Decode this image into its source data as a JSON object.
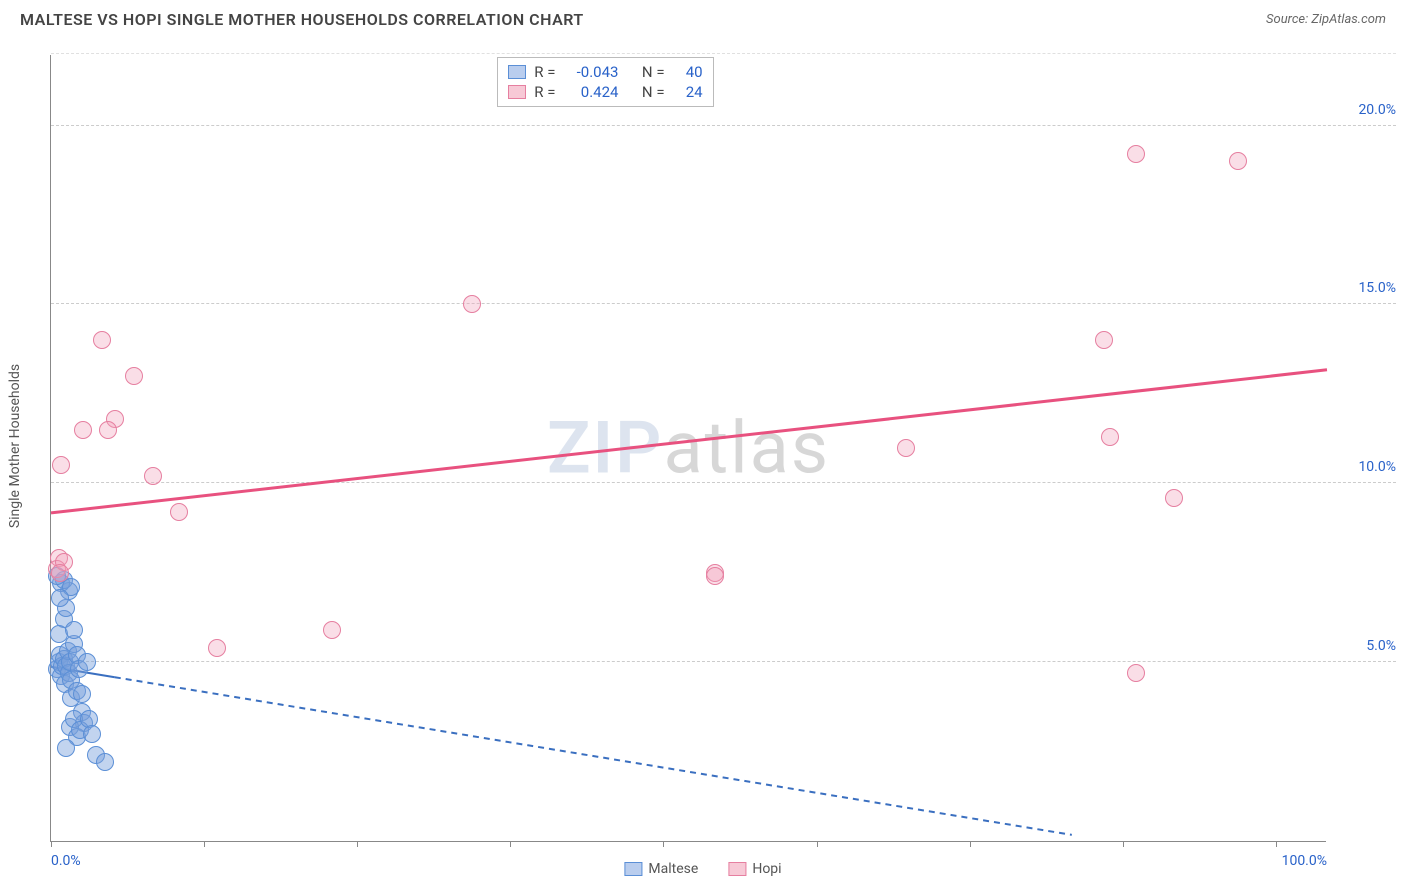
{
  "title": "MALTESE VS HOPI SINGLE MOTHER HOUSEHOLDS CORRELATION CHART",
  "source_label": "Source: ZipAtlas.com",
  "y_axis_label": "Single Mother Households",
  "watermark": {
    "zip": "ZIP",
    "atlas": "atlas"
  },
  "chart": {
    "type": "scatter",
    "background_color": "#ffffff",
    "grid_color": "#cccccc",
    "axis_color": "#888888",
    "text_color": "#555555",
    "value_color": "#2962c9",
    "xlim": [
      0,
      100
    ],
    "ylim": [
      0,
      22
    ],
    "x_ticks": [
      0,
      12,
      24,
      36,
      48,
      60,
      72,
      84,
      96
    ],
    "x_tick_labels": {
      "0": "0.0%",
      "100": "100.0%"
    },
    "y_gridlines": [
      5,
      10,
      15,
      20
    ],
    "y_tick_labels": {
      "5": "5.0%",
      "10": "10.0%",
      "15": "15.0%",
      "20": "20.0%"
    },
    "marker_radius": 9,
    "marker_stroke_width": 1.5,
    "series": [
      {
        "name": "Maltese",
        "fill": "rgba(120,160,220,0.45)",
        "stroke": "#5b8fd6",
        "swatch_fill": "#b9cdee",
        "swatch_stroke": "#5b8fd6",
        "R": "-0.043",
        "N": "40",
        "trend": {
          "x1": 0,
          "y1": 4.9,
          "x2": 80,
          "y2": 0.2,
          "solid_until_x": 5,
          "color": "#3a6fc0",
          "width": 2,
          "dash": "6,5"
        },
        "points": [
          [
            0.5,
            4.8
          ],
          [
            0.6,
            5.0
          ],
          [
            0.7,
            5.2
          ],
          [
            0.8,
            4.6
          ],
          [
            0.9,
            4.9
          ],
          [
            1.0,
            5.1
          ],
          [
            1.1,
            4.4
          ],
          [
            1.2,
            4.9
          ],
          [
            1.3,
            5.3
          ],
          [
            1.4,
            4.7
          ],
          [
            1.5,
            5.0
          ],
          [
            1.6,
            4.5
          ],
          [
            1.0,
            6.2
          ],
          [
            1.2,
            6.5
          ],
          [
            1.4,
            7.0
          ],
          [
            0.8,
            7.2
          ],
          [
            1.0,
            7.3
          ],
          [
            1.6,
            7.1
          ],
          [
            0.6,
            5.8
          ],
          [
            1.8,
            5.5
          ],
          [
            2.0,
            5.2
          ],
          [
            2.2,
            4.8
          ],
          [
            2.4,
            3.6
          ],
          [
            2.6,
            3.3
          ],
          [
            1.5,
            3.2
          ],
          [
            1.8,
            3.4
          ],
          [
            2.0,
            2.9
          ],
          [
            2.3,
            3.1
          ],
          [
            3.0,
            3.4
          ],
          [
            3.2,
            3.0
          ],
          [
            3.5,
            2.4
          ],
          [
            1.2,
            2.6
          ],
          [
            1.6,
            4.0
          ],
          [
            2.0,
            4.2
          ],
          [
            2.4,
            4.1
          ],
          [
            4.2,
            2.2
          ],
          [
            0.5,
            7.4
          ],
          [
            0.7,
            6.8
          ],
          [
            1.8,
            5.9
          ],
          [
            2.8,
            5.0
          ]
        ]
      },
      {
        "name": "Hopi",
        "fill": "rgba(240,160,185,0.35)",
        "stroke": "#e67fa0",
        "swatch_fill": "#f7c9d6",
        "swatch_stroke": "#e67fa0",
        "R": "0.424",
        "N": "24",
        "trend": {
          "x1": 0,
          "y1": 9.2,
          "x2": 100,
          "y2": 13.2,
          "solid_until_x": 100,
          "color": "#e8517f",
          "width": 3,
          "dash": ""
        },
        "points": [
          [
            0.8,
            10.5
          ],
          [
            0.6,
            7.9
          ],
          [
            0.5,
            7.6
          ],
          [
            2.5,
            11.5
          ],
          [
            4.0,
            14.0
          ],
          [
            5.0,
            11.8
          ],
          [
            6.5,
            13.0
          ],
          [
            8.0,
            10.2
          ],
          [
            10.0,
            9.2
          ],
          [
            13.0,
            5.4
          ],
          [
            22.0,
            5.9
          ],
          [
            33.0,
            15.0
          ],
          [
            52.0,
            7.5
          ],
          [
            67.0,
            11.0
          ],
          [
            82.5,
            14.0
          ],
          [
            85.0,
            19.2
          ],
          [
            83.0,
            11.3
          ],
          [
            88.0,
            9.6
          ],
          [
            85.0,
            4.7
          ],
          [
            93.0,
            19.0
          ],
          [
            52.0,
            7.4
          ],
          [
            4.5,
            11.5
          ],
          [
            1.0,
            7.8
          ],
          [
            0.7,
            7.5
          ]
        ]
      }
    ]
  },
  "legend": {
    "items": [
      {
        "label": "Maltese",
        "series_idx": 0
      },
      {
        "label": "Hopi",
        "series_idx": 1
      }
    ]
  }
}
